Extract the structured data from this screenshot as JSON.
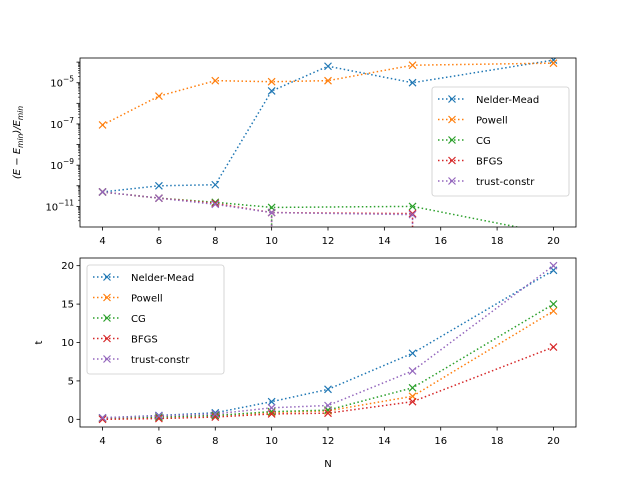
{
  "chart_data": [
    {
      "type": "line",
      "yscale": "log",
      "ylabel": "(E − E_min)/E_min",
      "ylabel_main": "(E − E",
      "ylabel_sub1": "min",
      "ylabel_mid": ")/E",
      "ylabel_sub2": "min",
      "xlabel": "",
      "xlim": [
        3.2,
        20.8
      ],
      "ylim_exp": [
        -12.0,
        -3.8
      ],
      "xticks": [
        4,
        6,
        8,
        10,
        12,
        14,
        16,
        18,
        20
      ],
      "yticks_exp": [
        -11,
        -9,
        -7,
        -5
      ],
      "ytick_base": "10",
      "ytick_exps": [
        "−11",
        "−9",
        "−7",
        "−5"
      ],
      "legend_position": "center-right",
      "series": [
        {
          "name": "Nelder-Mead",
          "color": "#1f77b4",
          "x": [
            4,
            6,
            8,
            10,
            12,
            15,
            20
          ],
          "y_exp": [
            -10.3,
            -10.0,
            -9.95,
            -5.4,
            -4.2,
            -5.0,
            -3.9
          ]
        },
        {
          "name": "Powell",
          "color": "#ff7f0e",
          "x": [
            4,
            6,
            8,
            10,
            12,
            15,
            20
          ],
          "y_exp": [
            -7.05,
            -5.65,
            -4.9,
            -4.95,
            -4.9,
            -4.15,
            -4.05
          ]
        },
        {
          "name": "CG",
          "color": "#2ca02c",
          "x": [
            4,
            6,
            8,
            10,
            15,
            20
          ],
          "y_exp": [
            -10.3,
            -10.6,
            -10.8,
            -11.05,
            -11.0,
            -12.35
          ],
          "drop_at": [
            10
          ]
        },
        {
          "name": "BFGS",
          "color": "#d62728",
          "x": [
            4,
            6,
            8,
            10,
            15
          ],
          "y_exp": [
            -10.3,
            -10.6,
            -10.85,
            -11.3,
            -11.35
          ],
          "drop_at": [
            10,
            15
          ]
        },
        {
          "name": "trust-constr",
          "color": "#9467bd",
          "x": [
            4,
            6,
            8,
            10,
            15
          ],
          "y_exp": [
            -10.3,
            -10.6,
            -10.9,
            -11.3,
            -11.4
          ],
          "drop_at": [
            10,
            15
          ]
        }
      ]
    },
    {
      "type": "line",
      "ylabel": "t",
      "xlabel": "N",
      "xlim": [
        3.2,
        20.8
      ],
      "ylim": [
        -1,
        21
      ],
      "xticks": [
        4,
        6,
        8,
        10,
        12,
        14,
        16,
        18,
        20
      ],
      "yticks": [
        0,
        5,
        10,
        15,
        20
      ],
      "legend_position": "upper-left",
      "series": [
        {
          "name": "Nelder-Mead",
          "color": "#1f77b4",
          "x": [
            4,
            6,
            8,
            10,
            12,
            15,
            20
          ],
          "y": [
            0.2,
            0.5,
            0.85,
            2.3,
            3.9,
            8.6,
            19.4
          ]
        },
        {
          "name": "Powell",
          "color": "#ff7f0e",
          "x": [
            4,
            6,
            8,
            10,
            12,
            15,
            20
          ],
          "y": [
            0.1,
            0.3,
            0.5,
            0.9,
            1.1,
            3.0,
            14.1
          ]
        },
        {
          "name": "CG",
          "color": "#2ca02c",
          "x": [
            4,
            6,
            8,
            10,
            12,
            15,
            20
          ],
          "y": [
            0.1,
            0.3,
            0.5,
            1.0,
            1.2,
            4.1,
            15.0
          ]
        },
        {
          "name": "BFGS",
          "color": "#d62728",
          "x": [
            4,
            6,
            8,
            10,
            12,
            15,
            20
          ],
          "y": [
            0.0,
            0.1,
            0.3,
            0.7,
            0.8,
            2.3,
            9.4
          ]
        },
        {
          "name": "trust-constr",
          "color": "#9467bd",
          "x": [
            4,
            6,
            8,
            10,
            12,
            15,
            20
          ],
          "y": [
            0.2,
            0.45,
            0.7,
            1.5,
            1.8,
            6.3,
            20.0
          ]
        }
      ]
    }
  ]
}
